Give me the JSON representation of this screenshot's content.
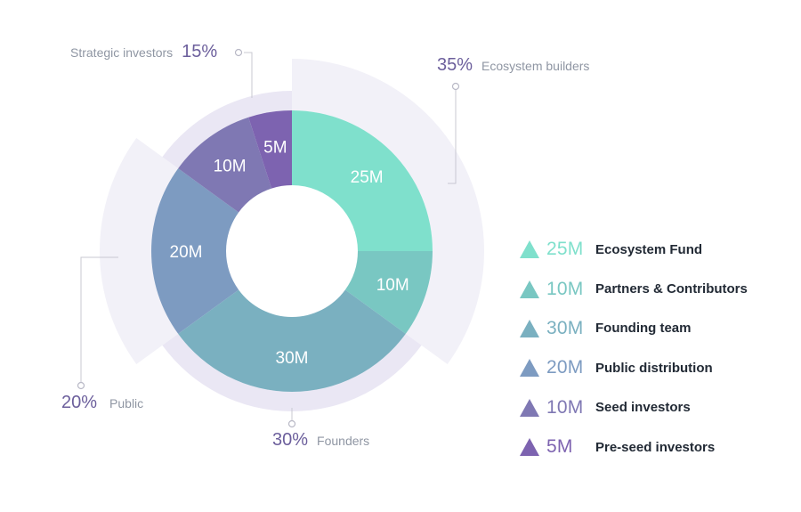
{
  "chart_data": {
    "type": "pie",
    "unit": "M",
    "slices": [
      {
        "label": "25M",
        "name": "Ecosystem Fund",
        "value": 25,
        "color": "#7fe0cc"
      },
      {
        "label": "10M",
        "name": "Partners & Contributors",
        "value": 10,
        "color": "#79c7c2"
      },
      {
        "label": "30M",
        "name": "Founding team",
        "value": 30,
        "color": "#7ab0c0"
      },
      {
        "label": "20M",
        "name": "Public distribution",
        "value": 20,
        "color": "#7d9bc1"
      },
      {
        "label": "10M",
        "name": "Seed investors",
        "value": 10,
        "color": "#7f78b3"
      },
      {
        "label": "5M",
        "name": "Pre-seed investors",
        "value": 5,
        "color": "#7d63b0"
      }
    ],
    "groups": [
      {
        "percent": "35%",
        "name": "Ecosystem builders",
        "value": 35
      },
      {
        "percent": "30%",
        "name": "Founders",
        "value": 30
      },
      {
        "percent": "20%",
        "name": "Public",
        "value": 20
      },
      {
        "percent": "15%",
        "name": "Strategic investors",
        "value": 15
      }
    ]
  },
  "callouts": {
    "strategic": {
      "pct": "15%",
      "name": "Strategic investors"
    },
    "ecosystem": {
      "pct": "35%",
      "name": "Ecosystem builders"
    },
    "public": {
      "pct": "20%",
      "name": "Public"
    },
    "founders": {
      "pct": "30%",
      "name": "Founders"
    }
  },
  "legend": [
    {
      "value": "25M",
      "label": "Ecosystem Fund",
      "color": "#7fe0cc"
    },
    {
      "value": "10M",
      "label": "Partners & Contributors",
      "color": "#79c7c2"
    },
    {
      "value": "30M",
      "label": "Founding team",
      "color": "#7ab0c0"
    },
    {
      "value": "20M",
      "label": "Public distribution",
      "color": "#7d9bc1"
    },
    {
      "value": "10M",
      "label": "Seed investors",
      "color": "#7f78b3"
    },
    {
      "value": "5M",
      "label": "Pre-seed investors",
      "color": "#7d63b0"
    }
  ]
}
